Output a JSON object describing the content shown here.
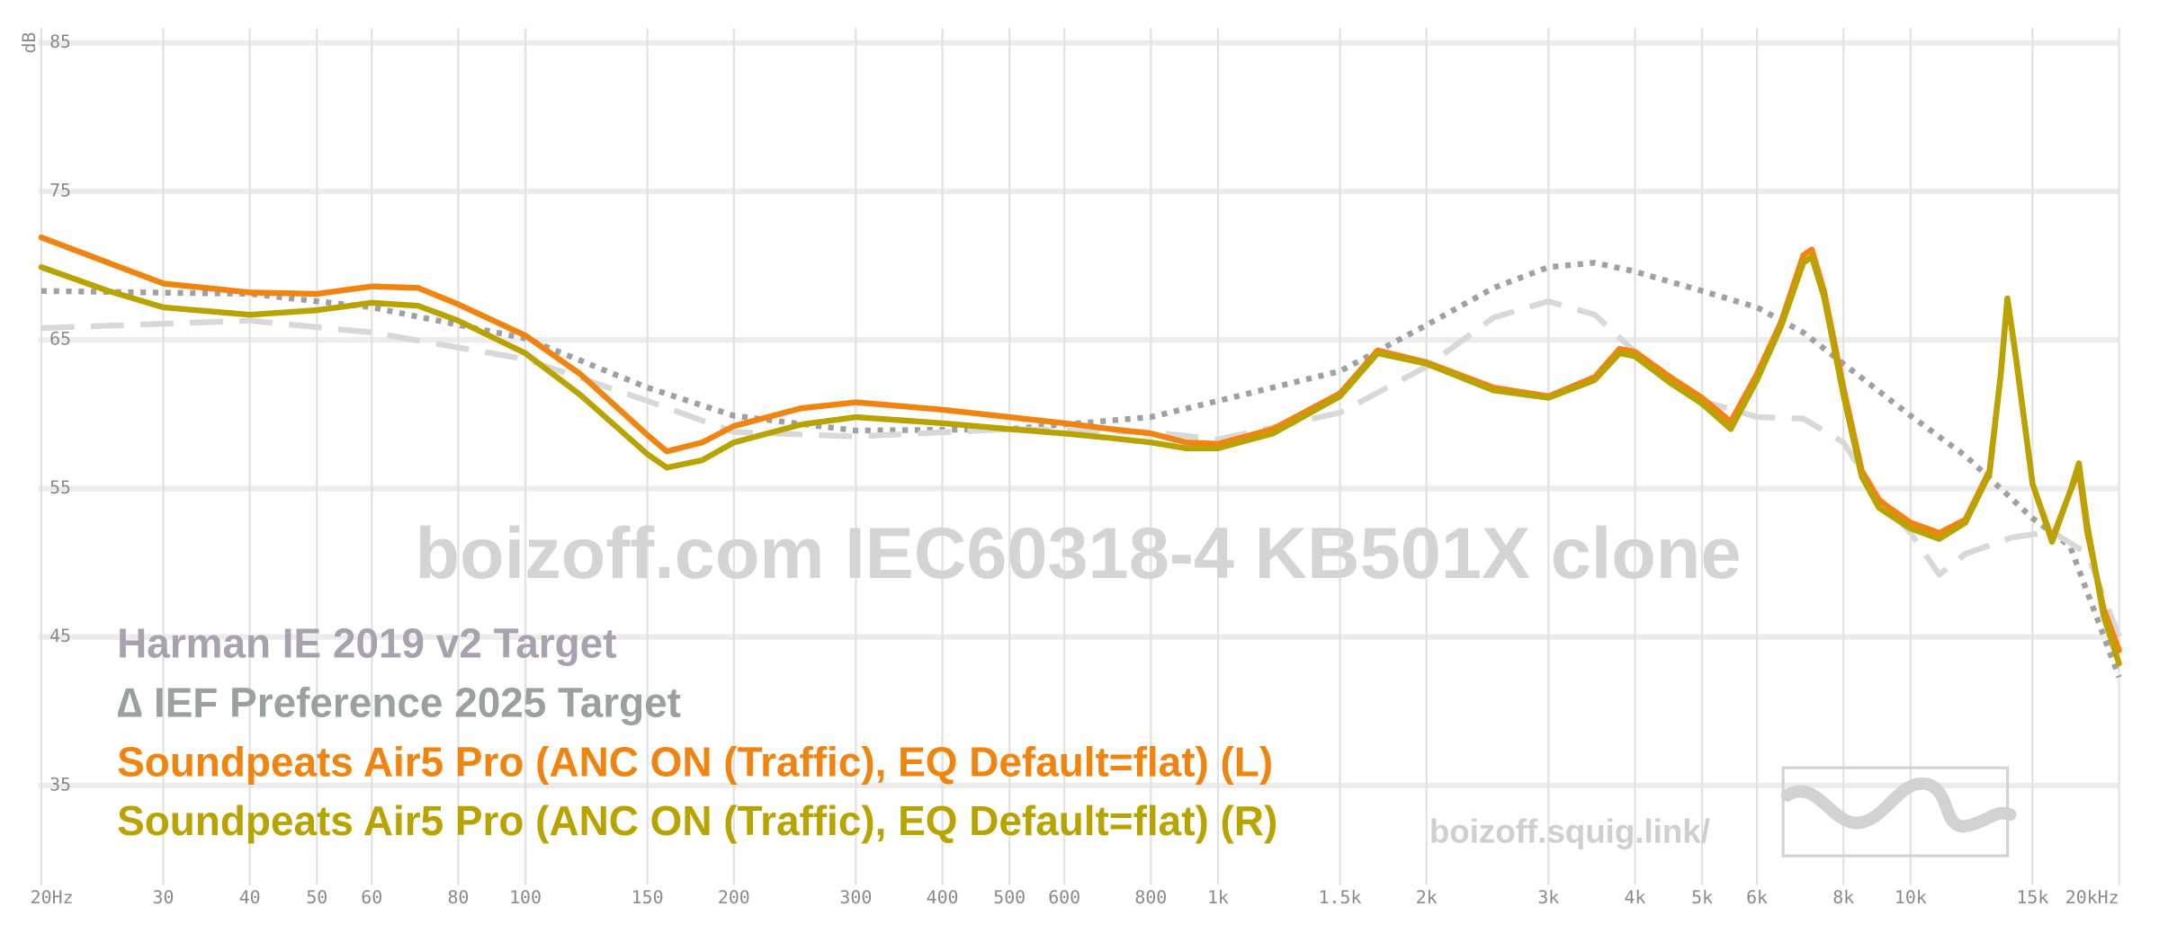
{
  "chart_data": {
    "type": "line",
    "watermark": "boizoff.com IEC60318-4 KB501X clone",
    "site": "boizoff.squig.link/",
    "y_label": "dB",
    "xscale": "log",
    "grid": true,
    "xlim": [
      20,
      20000
    ],
    "ylim": [
      28.3,
      86
    ],
    "xticks": [
      {
        "value": 20,
        "label": "20Hz"
      },
      30,
      40,
      50,
      60,
      80,
      100,
      150,
      200,
      300,
      400,
      500,
      600,
      800,
      {
        "value": 1000,
        "label": "1k"
      },
      {
        "value": 1500,
        "label": "1.5k"
      },
      {
        "value": 2000,
        "label": "2k"
      },
      {
        "value": 3000,
        "label": "3k"
      },
      {
        "value": 4000,
        "label": "4k"
      },
      {
        "value": 5000,
        "label": "5k"
      },
      {
        "value": 6000,
        "label": "6k"
      },
      {
        "value": 8000,
        "label": "8k"
      },
      {
        "value": 10000,
        "label": "10k"
      },
      {
        "value": 15000,
        "label": "15k"
      },
      {
        "value": 20000,
        "label": "20kHz"
      }
    ],
    "yticks": [
      35,
      45,
      55,
      65,
      75,
      85
    ],
    "series": [
      {
        "name": "Harman IE 2019 v2 Target",
        "color": "#a29ea8",
        "legend_color": "#a8a2b0",
        "dash": "dotted",
        "x": [
          20,
          40,
          60,
          100,
          150,
          200,
          300,
          500,
          800,
          1000,
          1500,
          2000,
          2500,
          3000,
          3500,
          4000,
          5000,
          6000,
          7000,
          8000,
          10000,
          12000,
          15000,
          17000,
          20000
        ],
        "values": [
          68.3,
          68.1,
          67.2,
          65.1,
          61.8,
          59.9,
          58.9,
          59.0,
          59.8,
          60.9,
          62.9,
          66.0,
          68.5,
          69.9,
          70.2,
          69.6,
          68.3,
          67.2,
          65.5,
          63.4,
          59.9,
          57.2,
          53.0,
          51.1,
          42.3
        ]
      },
      {
        "name": "∆ IEF Preference 2025 Target",
        "color": "#d8d8d8",
        "legend_color": "#98a0a0",
        "dash": "dashed",
        "x": [
          20,
          40,
          60,
          100,
          150,
          200,
          300,
          500,
          800,
          1000,
          1500,
          2000,
          2500,
          3000,
          3500,
          4000,
          5000,
          6000,
          7000,
          8000,
          9000,
          10000,
          11000,
          12000,
          14000,
          16000,
          18000,
          20000
        ],
        "values": [
          65.8,
          66.3,
          65.5,
          63.7,
          60.9,
          58.8,
          58.5,
          59.0,
          58.8,
          58.3,
          60.1,
          63.2,
          66.5,
          67.6,
          66.7,
          64.2,
          60.9,
          59.8,
          59.7,
          58.1,
          54.4,
          52.0,
          49.2,
          50.6,
          51.7,
          52.1,
          50.6,
          45.0
        ]
      },
      {
        "name": "Soundpeats Air5 Pro (ANC ON (Traffic), EQ Default=flat) (L)",
        "color": "#f0840f",
        "dash": "solid",
        "x": [
          20,
          25,
          30,
          40,
          50,
          60,
          70,
          80,
          100,
          120,
          150,
          160,
          180,
          200,
          250,
          300,
          400,
          500,
          600,
          700,
          800,
          900,
          1000,
          1200,
          1500,
          1700,
          2000,
          2500,
          3000,
          3500,
          3800,
          4000,
          4500,
          5000,
          5500,
          6000,
          6500,
          7000,
          7200,
          7500,
          8000,
          8500,
          9000,
          10000,
          11000,
          12000,
          13000,
          13500,
          13800,
          14200,
          15000,
          16000,
          17000,
          17500,
          18000,
          19000,
          20000
        ],
        "values": [
          71.9,
          70.2,
          68.8,
          68.2,
          68.1,
          68.6,
          68.5,
          67.4,
          65.3,
          62.7,
          58.6,
          57.5,
          58.1,
          59.2,
          60.4,
          60.8,
          60.3,
          59.8,
          59.4,
          59.0,
          58.7,
          58.1,
          58.0,
          59.0,
          61.4,
          64.3,
          63.5,
          61.8,
          61.2,
          62.5,
          64.4,
          64.2,
          62.5,
          61.1,
          59.5,
          62.7,
          66.2,
          70.7,
          71.1,
          68.3,
          61.8,
          56.2,
          54.2,
          52.7,
          52.0,
          52.9,
          56.2,
          62.7,
          67.8,
          63.7,
          55.3,
          51.6,
          54.8,
          56.2,
          52.0,
          46.9,
          44.1
        ]
      },
      {
        "name": "Soundpeats Air5 Pro (ANC ON (Traffic), EQ Default=flat) (R)",
        "color": "#b8a300",
        "dash": "solid",
        "x": [
          20,
          25,
          30,
          40,
          50,
          60,
          70,
          80,
          100,
          120,
          150,
          160,
          180,
          200,
          250,
          300,
          400,
          500,
          600,
          700,
          800,
          900,
          1000,
          1200,
          1500,
          1700,
          2000,
          2500,
          3000,
          3500,
          3800,
          4000,
          4500,
          5000,
          5500,
          6000,
          6500,
          7000,
          7200,
          7500,
          8000,
          8500,
          9000,
          10000,
          11000,
          12000,
          13000,
          13500,
          13800,
          14200,
          15000,
          16000,
          17000,
          17500,
          18000,
          19000,
          20000
        ],
        "values": [
          69.9,
          68.3,
          67.2,
          66.7,
          67.0,
          67.5,
          67.3,
          66.3,
          64.1,
          61.3,
          57.3,
          56.4,
          56.9,
          58.1,
          59.3,
          59.8,
          59.4,
          59.0,
          58.7,
          58.4,
          58.1,
          57.7,
          57.7,
          58.7,
          61.2,
          64.1,
          63.4,
          61.6,
          61.1,
          62.3,
          64.1,
          63.9,
          62.1,
          60.7,
          59.0,
          62.3,
          65.9,
          70.2,
          70.6,
          67.9,
          61.3,
          55.8,
          53.7,
          52.3,
          51.6,
          52.7,
          56.0,
          62.7,
          67.8,
          63.8,
          55.3,
          51.4,
          54.8,
          56.7,
          52.5,
          46.4,
          43.2
        ]
      }
    ]
  }
}
